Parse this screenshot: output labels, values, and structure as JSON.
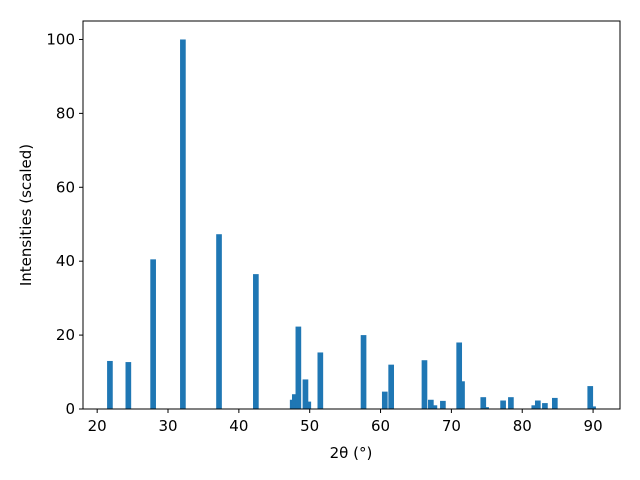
{
  "chart_data": {
    "type": "bar",
    "xlabel": "2θ (°)",
    "ylabel": "Intensities (scaled)",
    "x": [
      21.8,
      24.4,
      27.9,
      32.1,
      37.2,
      42.4,
      47.6,
      47.9,
      48.4,
      49.4,
      49.8,
      51.5,
      57.6,
      60.6,
      61.5,
      66.2,
      67.1,
      67.6,
      68.8,
      71.1,
      71.5,
      74.5,
      74.9,
      77.3,
      78.4,
      81.7,
      82.2,
      83.2,
      84.6,
      89.6,
      90.0
    ],
    "values": [
      13,
      12.7,
      40.5,
      100,
      47.3,
      36.5,
      2.5,
      4,
      22.3,
      8,
      2,
      15.3,
      20,
      4.7,
      12,
      13.2,
      2.5,
      1,
      2.2,
      18,
      7.5,
      3.2,
      0.5,
      2.3,
      3.2,
      1,
      2.3,
      1.6,
      3,
      6.2,
      0.7
    ],
    "bar_width": 0.8,
    "color": "#1f77b4",
    "xlim": [
      18,
      93.8
    ],
    "xticks": [
      20,
      30,
      40,
      50,
      60,
      70,
      80,
      90
    ],
    "ylim": [
      0,
      105
    ],
    "yticks": [
      0,
      20,
      40,
      60,
      80,
      100
    ]
  }
}
